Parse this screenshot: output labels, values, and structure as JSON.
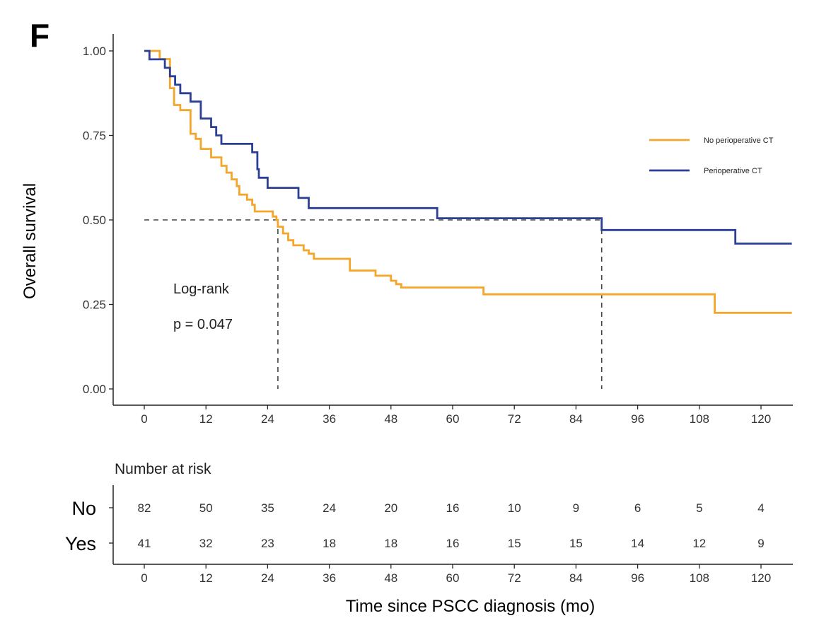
{
  "panel_label": "F",
  "chart_data": {
    "type": "line",
    "subtype": "kaplan-meier",
    "ylabel": "Overall survival",
    "xlabel": "Time since PSCC diagnosis (mo)",
    "xlim": [
      0,
      126
    ],
    "ylim": [
      0,
      1.0
    ],
    "x_ticks": [
      0,
      12,
      24,
      36,
      48,
      60,
      72,
      84,
      96,
      108,
      120
    ],
    "y_ticks": [
      "0.00",
      "0.25",
      "0.50",
      "0.75",
      "1.00"
    ],
    "legend_position": "right",
    "grid": false,
    "annotations": [
      "Log-rank",
      "p = 0.047"
    ],
    "median_reference": {
      "y": 0.5,
      "median_times": [
        26,
        89
      ]
    },
    "series": [
      {
        "name": "No perioperative CT",
        "color": "#F5A52A",
        "steps": [
          [
            0,
            1.0
          ],
          [
            3,
            0.976
          ],
          [
            5,
            0.89
          ],
          [
            5.8,
            0.84
          ],
          [
            7,
            0.825
          ],
          [
            9,
            0.755
          ],
          [
            10,
            0.74
          ],
          [
            11,
            0.71
          ],
          [
            13,
            0.685
          ],
          [
            15,
            0.66
          ],
          [
            16,
            0.64
          ],
          [
            17,
            0.62
          ],
          [
            18,
            0.6
          ],
          [
            18.5,
            0.575
          ],
          [
            20,
            0.56
          ],
          [
            21,
            0.545
          ],
          [
            21.5,
            0.525
          ],
          [
            25,
            0.51
          ],
          [
            25.7,
            0.5
          ],
          [
            26,
            0.48
          ],
          [
            27,
            0.46
          ],
          [
            28,
            0.44
          ],
          [
            29,
            0.425
          ],
          [
            31,
            0.41
          ],
          [
            32,
            0.4
          ],
          [
            33,
            0.385
          ],
          [
            40,
            0.35
          ],
          [
            45,
            0.335
          ],
          [
            48,
            0.32
          ],
          [
            49,
            0.31
          ],
          [
            50,
            0.3
          ],
          [
            66,
            0.28
          ],
          [
            111,
            0.225
          ],
          [
            126,
            0.225
          ]
        ]
      },
      {
        "name": "Perioperative CT",
        "color": "#2B3F96",
        "steps": [
          [
            0,
            1.0
          ],
          [
            1,
            0.975
          ],
          [
            4,
            0.95
          ],
          [
            5,
            0.925
          ],
          [
            6,
            0.9
          ],
          [
            7,
            0.875
          ],
          [
            9,
            0.85
          ],
          [
            11,
            0.8
          ],
          [
            13,
            0.775
          ],
          [
            14,
            0.75
          ],
          [
            15,
            0.725
          ],
          [
            21,
            0.7
          ],
          [
            22,
            0.65
          ],
          [
            22.3,
            0.625
          ],
          [
            24,
            0.595
          ],
          [
            30,
            0.565
          ],
          [
            32,
            0.535
          ],
          [
            57,
            0.505
          ],
          [
            89,
            0.47
          ],
          [
            115,
            0.43
          ],
          [
            126,
            0.43
          ]
        ]
      }
    ]
  },
  "risk_table": {
    "title": "Number at risk",
    "times": [
      0,
      12,
      24,
      36,
      48,
      60,
      72,
      84,
      96,
      108,
      120
    ],
    "rows": [
      {
        "group": "No",
        "values": [
          82,
          50,
          35,
          24,
          20,
          16,
          10,
          9,
          6,
          5,
          4
        ]
      },
      {
        "group": "Yes",
        "values": [
          41,
          32,
          23,
          18,
          18,
          16,
          15,
          15,
          14,
          12,
          9
        ]
      }
    ]
  }
}
